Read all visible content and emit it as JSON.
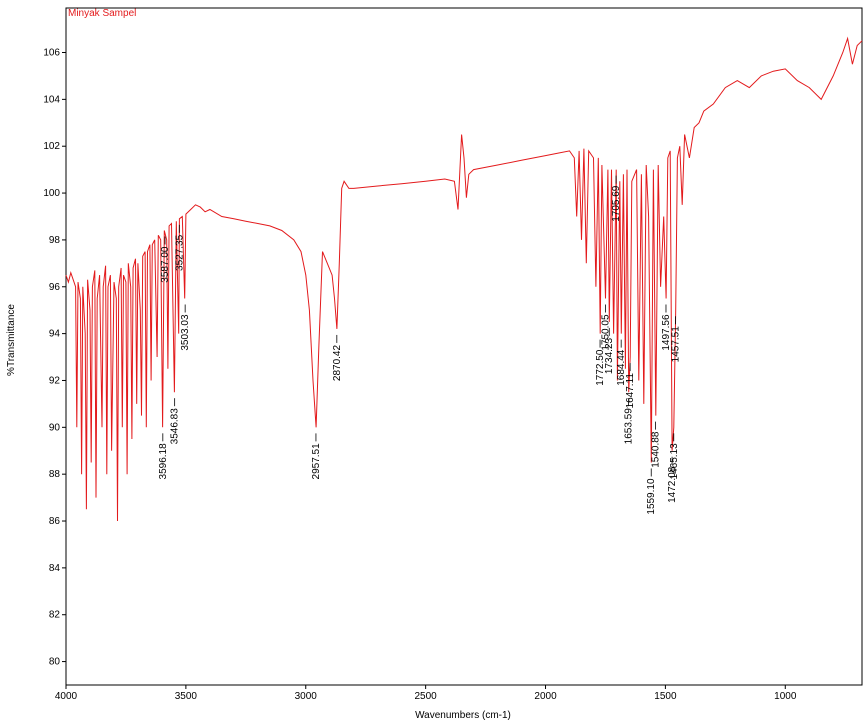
{
  "chart_data": {
    "type": "line",
    "title": "Minyak Sampel",
    "xlabel": "Wavenumbers (cm-1)",
    "ylabel": "%Transmittance",
    "xlim": [
      4000,
      680
    ],
    "ylim": [
      79,
      107.9
    ],
    "xticks": [
      4000,
      3500,
      3000,
      2500,
      2000,
      1500,
      1000
    ],
    "yticks": [
      80,
      82,
      84,
      86,
      88,
      90,
      92,
      94,
      96,
      98,
      100,
      102,
      104,
      106
    ],
    "x_reversed": true,
    "grid": false,
    "series": [
      {
        "name": "Minyak Sampel",
        "color": "#e31a1c",
        "x": [
          4000,
          3990,
          3980,
          3970,
          3960,
          3955,
          3950,
          3940,
          3935,
          3930,
          3920,
          3915,
          3910,
          3900,
          3895,
          3890,
          3880,
          3875,
          3870,
          3860,
          3850,
          3845,
          3835,
          3830,
          3825,
          3815,
          3810,
          3800,
          3790,
          3785,
          3780,
          3770,
          3765,
          3760,
          3750,
          3745,
          3740,
          3730,
          3725,
          3720,
          3710,
          3705,
          3700,
          3690,
          3685,
          3680,
          3670,
          3665,
          3660,
          3650,
          3645,
          3640,
          3630,
          3620,
          3615,
          3605,
          3597,
          3590,
          3580,
          3575,
          3570,
          3560,
          3548,
          3540,
          3530,
          3527,
          3515,
          3505,
          3500,
          3480,
          3460,
          3440,
          3420,
          3400,
          3350,
          3300,
          3250,
          3200,
          3150,
          3100,
          3050,
          3020,
          3000,
          2985,
          2970,
          2957,
          2945,
          2930,
          2910,
          2890,
          2880,
          2870,
          2860,
          2850,
          2840,
          2820,
          2800,
          2700,
          2600,
          2500,
          2420,
          2380,
          2365,
          2350,
          2340,
          2330,
          2320,
          2300,
          2200,
          2100,
          2000,
          1950,
          1900,
          1880,
          1870,
          1860,
          1850,
          1840,
          1830,
          1820,
          1800,
          1790,
          1780,
          1772,
          1765,
          1750,
          1740,
          1734,
          1725,
          1716,
          1705,
          1700,
          1690,
          1684,
          1675,
          1667,
          1660,
          1653,
          1647,
          1640,
          1620,
          1611,
          1600,
          1590,
          1580,
          1570,
          1559,
          1550,
          1540,
          1530,
          1520,
          1507,
          1497,
          1490,
          1480,
          1472,
          1465,
          1457,
          1450,
          1440,
          1430,
          1420,
          1400,
          1380,
          1360,
          1340,
          1300,
          1250,
          1200,
          1150,
          1100,
          1050,
          1000,
          950,
          900,
          850,
          800,
          760,
          740,
          720,
          700,
          680
        ],
        "values": [
          96.5,
          96.2,
          96.6,
          96.3,
          96.0,
          90.0,
          96.2,
          95.5,
          88.0,
          96.0,
          94.0,
          86.5,
          96.3,
          95.0,
          88.5,
          96.0,
          96.7,
          87.0,
          95.5,
          96.5,
          90.0,
          96.0,
          96.9,
          88.0,
          96.0,
          96.5,
          89.0,
          96.2,
          95.5,
          86.0,
          96.0,
          96.8,
          90.0,
          96.5,
          96.2,
          88.0,
          97.0,
          96.0,
          89.5,
          96.8,
          97.2,
          91.0,
          97.0,
          95.0,
          90.5,
          97.3,
          97.5,
          90.0,
          97.5,
          97.8,
          92.0,
          97.8,
          98.0,
          93.0,
          98.2,
          98.0,
          90.0,
          98.4,
          98.0,
          92.5,
          98.6,
          98.7,
          91.5,
          98.8,
          94.0,
          98.9,
          99.0,
          95.5,
          99.1,
          99.3,
          99.5,
          99.4,
          99.2,
          99.3,
          99.0,
          98.9,
          98.8,
          98.7,
          98.6,
          98.4,
          98.0,
          97.5,
          96.5,
          95.0,
          92.0,
          90.0,
          93.5,
          97.5,
          97.0,
          96.5,
          95.5,
          94.2,
          97.0,
          100.2,
          100.5,
          100.2,
          100.2,
          100.3,
          100.4,
          100.5,
          100.6,
          100.5,
          99.3,
          102.5,
          101.5,
          99.8,
          100.8,
          101.0,
          101.2,
          101.4,
          101.6,
          101.7,
          101.8,
          101.5,
          99.0,
          101.8,
          98.0,
          101.9,
          97.0,
          101.8,
          101.5,
          96.0,
          101.5,
          94.0,
          101.2,
          95.5,
          101.0,
          94.5,
          101.0,
          94.0,
          101.0,
          92.0,
          100.5,
          94.0,
          100.8,
          92.5,
          101.0,
          91.5,
          93.0,
          100.5,
          101.0,
          92.0,
          100.8,
          91.0,
          101.2,
          99.0,
          88.5,
          101.0,
          90.5,
          101.2,
          96.0,
          99.0,
          95.5,
          101.5,
          101.8,
          89.0,
          90.0,
          95.0,
          101.5,
          102.0,
          99.5,
          102.5,
          101.5,
          102.8,
          103.0,
          103.5,
          103.8,
          104.5,
          104.8,
          104.5,
          105.0,
          105.2,
          105.3,
          104.8,
          104.5,
          104.0,
          105.0,
          106.0,
          106.6,
          105.5,
          106.3,
          106.5
        ]
      }
    ],
    "annotations": [
      {
        "text": "2957.51",
        "x": 2957.51
      },
      {
        "text": "2870.42",
        "x": 2870.42
      },
      {
        "text": "3503.03",
        "x": 3503.03
      },
      {
        "text": "3527.35",
        "x": 3527.35
      },
      {
        "text": "3546.83",
        "x": 3546.83
      },
      {
        "text": "3587.00",
        "x": 3587.0
      },
      {
        "text": "3596.18",
        "x": 3596.18
      },
      {
        "text": "1750.05",
        "x": 1750.05
      },
      {
        "text": "1734.23",
        "x": 1734.23
      },
      {
        "text": "1705.69",
        "x": 1705.69
      },
      {
        "text": "1684.44",
        "x": 1684.44
      },
      {
        "text": "1772.50",
        "x": 1772.5
      },
      {
        "text": "1653.59",
        "x": 1653.59
      },
      {
        "text": "1647.11",
        "x": 1647.11
      },
      {
        "text": "1559.10",
        "x": 1559.1
      },
      {
        "text": "1540.88",
        "x": 1540.88
      },
      {
        "text": "1497.56",
        "x": 1497.56
      },
      {
        "text": "1472.08",
        "x": 1472.08
      },
      {
        "text": "1465.13",
        "x": 1465.13
      },
      {
        "text": "1457.51",
        "x": 1457.51
      }
    ]
  }
}
